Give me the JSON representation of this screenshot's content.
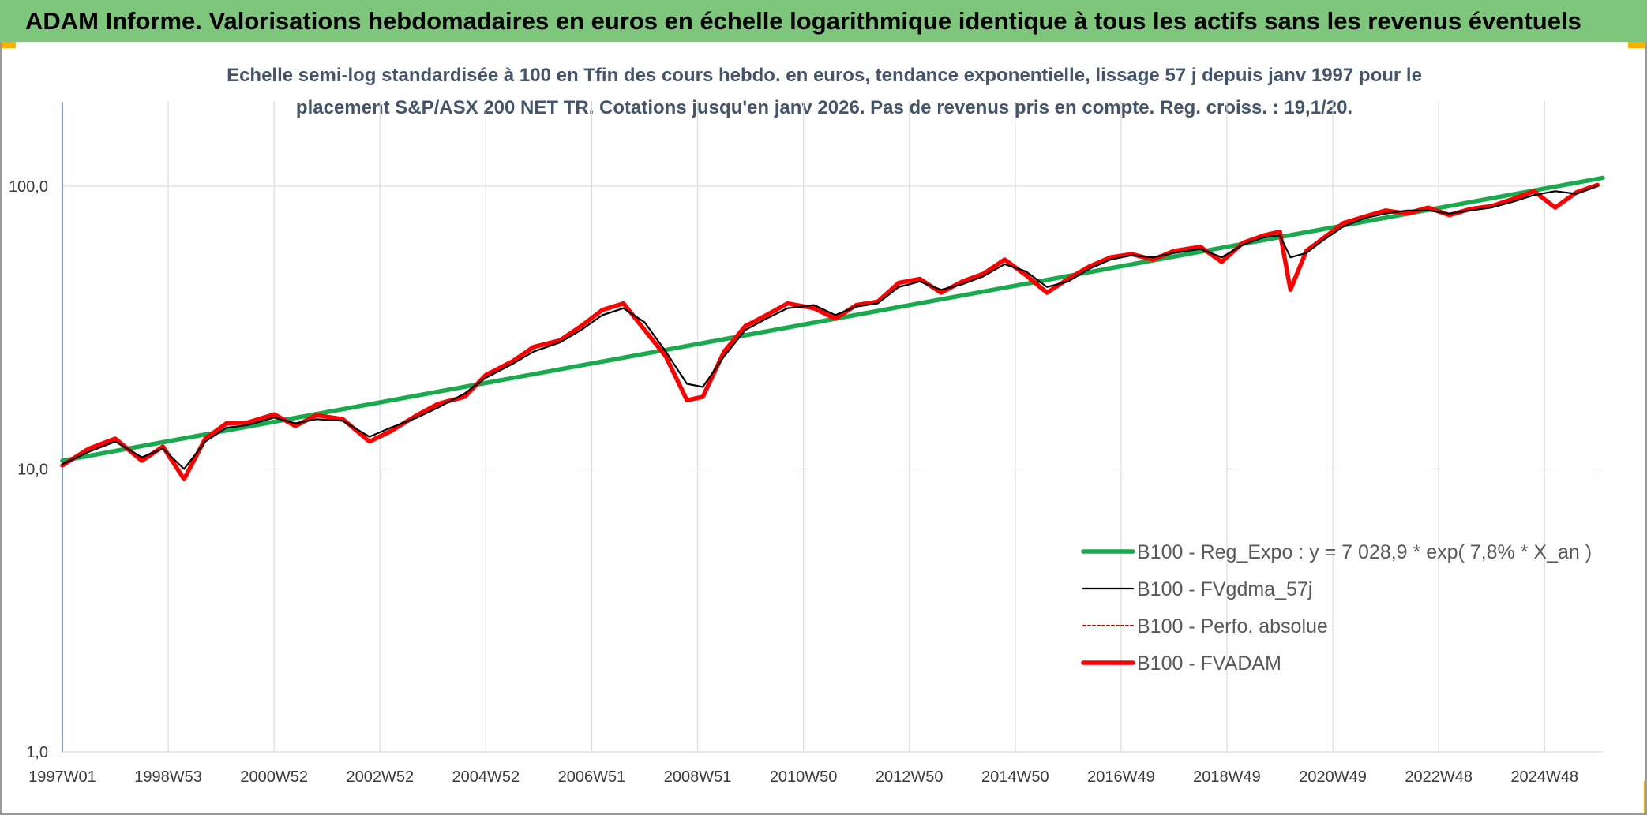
{
  "banner": {
    "title": "ADAM Informe. Valorisations hebdomadaires en euros en échelle logarithmique identique à tous les actifs sans les revenus éventuels"
  },
  "chart_data": {
    "type": "line",
    "title_lines": [
      "Echelle semi-log standardisée à 100 en Tfin des cours hebdo. en euros, tendance exponentielle, lissage 57 j depuis janv 1997 pour le",
      "placement S&P/ASX 200 NET TR. Cotations jusqu'en janv 2026. Pas de revenus pris en compte. Reg. croiss. : 19,1/20."
    ],
    "y_scale": "log",
    "ylim": [
      1,
      200
    ],
    "y_ticks": [
      "1,0",
      "10,0",
      "100,0"
    ],
    "y_tick_values": [
      1,
      10,
      100
    ],
    "x_range_years": [
      1997.0,
      2026.1
    ],
    "x_ticks": [
      "1997W01",
      "1998W53",
      "2000W52",
      "2002W52",
      "2004W52",
      "2006W51",
      "2008W51",
      "2010W50",
      "2012W50",
      "2014W50",
      "2016W49",
      "2018W49",
      "2020W49",
      "2022W48",
      "2024W48"
    ],
    "x_tick_years": [
      1997.0,
      1999.0,
      2001.0,
      2003.0,
      2005.0,
      2007.0,
      2009.0,
      2011.0,
      2013.0,
      2015.0,
      2017.0,
      2019.0,
      2021.0,
      2023.0,
      2025.0
    ],
    "grid": true,
    "legend_position": "bottom-right",
    "series": [
      {
        "name": "B100 - Reg_Expo : y = 7 028,9 * exp( 7,8% *  X_an )",
        "color": "#1aaa4e",
        "style": "solid-thick",
        "x": [
          1997.0,
          2026.1
        ],
        "y": [
          10.7,
          107
        ]
      },
      {
        "name": "B100 - FVgdma_57j",
        "color": "#000000",
        "style": "solid-thin",
        "x": [
          1997.0,
          1997.5,
          1998.0,
          1998.5,
          1998.9,
          1999.3,
          1999.7,
          2000.1,
          2000.5,
          2001.0,
          2001.4,
          2001.8,
          2002.3,
          2002.8,
          2003.2,
          2003.7,
          2004.1,
          2004.6,
          2005.0,
          2005.5,
          2005.9,
          2006.4,
          2006.8,
          2007.2,
          2007.6,
          2008.0,
          2008.4,
          2008.8,
          2009.1,
          2009.5,
          2009.9,
          2010.3,
          2010.7,
          2011.2,
          2011.6,
          2012.0,
          2012.4,
          2012.8,
          2013.2,
          2013.6,
          2014.0,
          2014.4,
          2014.8,
          2015.2,
          2015.6,
          2016.0,
          2016.4,
          2016.8,
          2017.2,
          2017.6,
          2018.0,
          2018.5,
          2018.9,
          2019.3,
          2019.7,
          2020.0,
          2020.2,
          2020.5,
          2020.8,
          2021.2,
          2021.6,
          2022.0,
          2022.4,
          2022.8,
          2023.2,
          2023.6,
          2024.0,
          2024.4,
          2024.8,
          2025.2,
          2025.6,
          2026.0
        ],
        "y": [
          10.4,
          11.5,
          12.5,
          11.0,
          11.8,
          10.0,
          12.5,
          14.0,
          14.3,
          15.2,
          14.5,
          15.0,
          14.8,
          13.0,
          14.0,
          15.2,
          16.5,
          18.5,
          21.0,
          23.5,
          26.0,
          28.0,
          31.0,
          35.0,
          37.0,
          33.0,
          26.0,
          20.0,
          19.5,
          25.0,
          31.0,
          34.0,
          37.0,
          38.0,
          35.0,
          37.5,
          38.5,
          44.0,
          46.0,
          43.0,
          45.0,
          48.0,
          53.0,
          50.0,
          44.0,
          46.0,
          51.0,
          55.0,
          57.0,
          56.0,
          58.0,
          60.0,
          56.0,
          62.0,
          66.0,
          67.0,
          56.0,
          58.0,
          64.0,
          72.0,
          77.0,
          80.0,
          82.0,
          82.0,
          80.0,
          82.0,
          84.0,
          88.0,
          93.0,
          96.0,
          94.0,
          100.0
        ]
      },
      {
        "name": "B100 - Perfo. absolue",
        "color": "#c00000",
        "style": "dotted",
        "x": [
          1997.0,
          1997.5,
          1998.0,
          1998.5,
          1998.9,
          1999.3,
          1999.7,
          2000.1,
          2000.5,
          2001.0,
          2001.4,
          2001.8,
          2002.3,
          2002.8,
          2003.2,
          2003.7,
          2004.1,
          2004.6,
          2005.0,
          2005.5,
          2005.9,
          2006.4,
          2006.8,
          2007.2,
          2007.6,
          2008.0,
          2008.4,
          2008.8,
          2009.1,
          2009.5,
          2009.9,
          2010.3,
          2010.7,
          2011.2,
          2011.6,
          2012.0,
          2012.4,
          2012.8,
          2013.2,
          2013.6,
          2014.0,
          2014.4,
          2014.8,
          2015.2,
          2015.6,
          2016.0,
          2016.4,
          2016.8,
          2017.2,
          2017.6,
          2018.0,
          2018.5,
          2018.9,
          2019.3,
          2019.7,
          2020.0,
          2020.2,
          2020.5,
          2020.8,
          2021.2,
          2021.6,
          2022.0,
          2022.4,
          2022.8,
          2023.2,
          2023.6,
          2024.0,
          2024.4,
          2024.8,
          2025.2,
          2025.6,
          2026.0
        ],
        "y": [
          10.3,
          11.8,
          12.8,
          10.7,
          12.0,
          9.2,
          12.8,
          14.5,
          14.6,
          15.6,
          14.2,
          15.5,
          15.0,
          12.5,
          13.6,
          15.5,
          17.0,
          18.0,
          21.5,
          24.0,
          27.0,
          28.5,
          32.0,
          36.5,
          38.5,
          31.0,
          25.0,
          17.5,
          18.0,
          26.0,
          32.0,
          35.0,
          38.5,
          37.0,
          34.0,
          38.0,
          39.0,
          45.5,
          47.0,
          42.0,
          46.0,
          49.0,
          55.0,
          48.5,
          42.0,
          47.0,
          52.0,
          56.0,
          57.5,
          55.0,
          59.0,
          61.0,
          54.0,
          63.0,
          67.0,
          69.0,
          43.0,
          59.0,
          65.0,
          74.0,
          78.0,
          82.0,
          80.0,
          84.0,
          79.0,
          83.0,
          85.0,
          90.0,
          96.0,
          84.0,
          95.0,
          101.0
        ]
      },
      {
        "name": "B100 - FVADAM",
        "color": "#ff0000",
        "style": "solid-thick",
        "x": [
          1997.0,
          1997.5,
          1998.0,
          1998.5,
          1998.9,
          1999.3,
          1999.7,
          2000.1,
          2000.5,
          2001.0,
          2001.4,
          2001.8,
          2002.3,
          2002.8,
          2003.2,
          2003.7,
          2004.1,
          2004.6,
          2005.0,
          2005.5,
          2005.9,
          2006.4,
          2006.8,
          2007.2,
          2007.6,
          2008.0,
          2008.4,
          2008.8,
          2009.1,
          2009.5,
          2009.9,
          2010.3,
          2010.7,
          2011.2,
          2011.6,
          2012.0,
          2012.4,
          2012.8,
          2013.2,
          2013.6,
          2014.0,
          2014.4,
          2014.8,
          2015.2,
          2015.6,
          2016.0,
          2016.4,
          2016.8,
          2017.2,
          2017.6,
          2018.0,
          2018.5,
          2018.9,
          2019.3,
          2019.7,
          2020.0,
          2020.2,
          2020.5,
          2020.8,
          2021.2,
          2021.6,
          2022.0,
          2022.4,
          2022.8,
          2023.2,
          2023.6,
          2024.0,
          2024.4,
          2024.8,
          2025.2,
          2025.6,
          2026.0
        ],
        "y": [
          10.3,
          11.8,
          12.8,
          10.7,
          12.0,
          9.2,
          12.8,
          14.5,
          14.6,
          15.6,
          14.2,
          15.5,
          15.0,
          12.5,
          13.6,
          15.5,
          17.0,
          18.0,
          21.5,
          24.0,
          27.0,
          28.5,
          32.0,
          36.5,
          38.5,
          31.0,
          25.0,
          17.5,
          18.0,
          26.0,
          32.0,
          35.0,
          38.5,
          37.0,
          34.0,
          38.0,
          39.0,
          45.5,
          47.0,
          42.0,
          46.0,
          49.0,
          55.0,
          48.5,
          42.0,
          47.0,
          52.0,
          56.0,
          57.5,
          55.0,
          59.0,
          61.0,
          54.0,
          63.0,
          67.0,
          69.0,
          43.0,
          59.0,
          65.0,
          74.0,
          78.0,
          82.0,
          80.0,
          84.0,
          79.0,
          83.0,
          85.0,
          90.0,
          96.0,
          84.0,
          95.0,
          101.0
        ]
      }
    ]
  }
}
